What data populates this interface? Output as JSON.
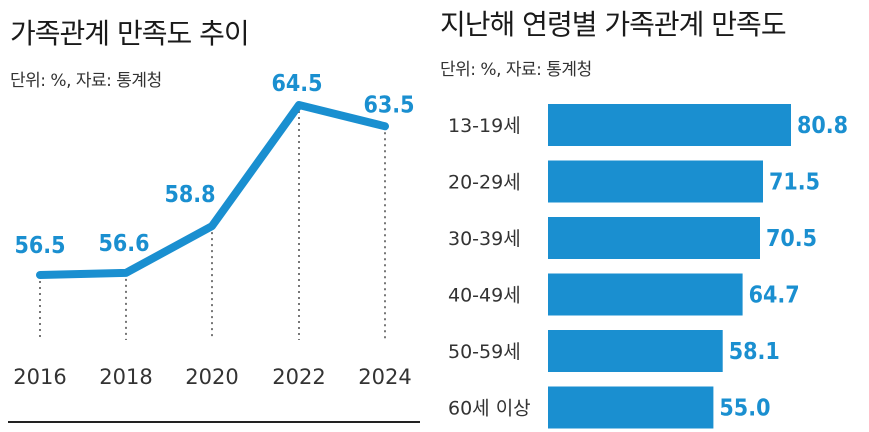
{
  "colors": {
    "accent": "#1a8fd0",
    "text": "#222222",
    "dots": "#555555"
  },
  "chart_data": [
    {
      "type": "line",
      "title": "가족관계 만족도 추이",
      "subtitle": "단위: %, 자료: 통계청",
      "x": [
        "2016",
        "2018",
        "2020",
        "2022",
        "2024"
      ],
      "series": [
        {
          "values": [
            56.5,
            56.6,
            58.8,
            64.5,
            63.5
          ],
          "labels": [
            "56.5",
            "56.6",
            "58.8",
            "64.5",
            "63.5"
          ]
        }
      ]
    },
    {
      "type": "bar",
      "orientation": "horizontal",
      "title": "지난해 연령별 가족관계 만족도",
      "subtitle": "단위: %, 자료: 통계청",
      "categories": [
        "13-19세",
        "20-29세",
        "30-39세",
        "40-49세",
        "50-59세",
        "60세 이상"
      ],
      "values": [
        80.8,
        71.5,
        70.5,
        64.7,
        58.1,
        55.0
      ],
      "labels": [
        "80.8",
        "71.5",
        "70.5",
        "64.7",
        "58.1",
        "55.0"
      ]
    }
  ]
}
